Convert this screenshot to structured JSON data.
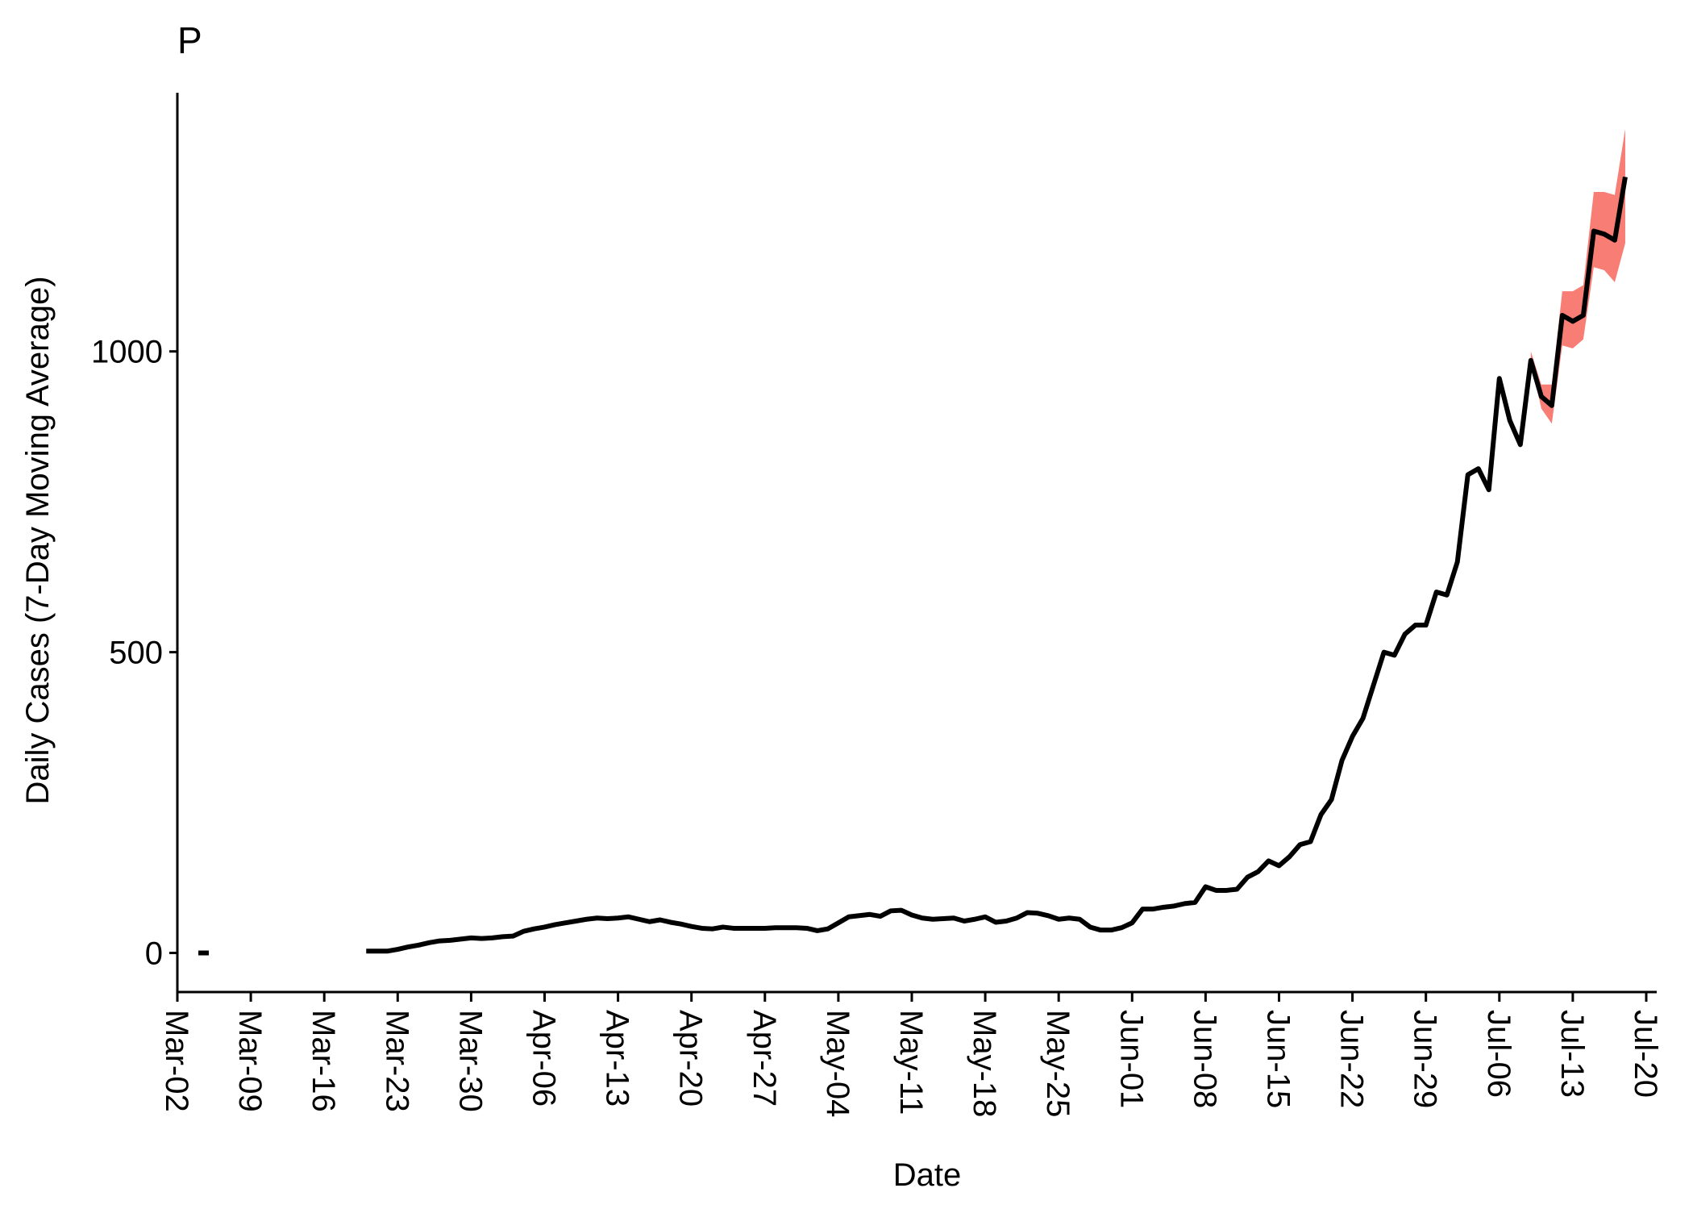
{
  "chart_data": {
    "type": "line",
    "panel_label": "P",
    "title": "",
    "xlabel": "Date",
    "ylabel": "Daily Cases (7-Day Moving Average)",
    "x_start": "Mar-02",
    "x_end": "Jul-21",
    "xlim": [
      "Mar-02",
      "Jul-21"
    ],
    "ylim": [
      -65,
      1430
    ],
    "x_ticks": [
      "Mar-02",
      "Mar-09",
      "Mar-16",
      "Mar-23",
      "Mar-30",
      "Apr-06",
      "Apr-13",
      "Apr-20",
      "Apr-27",
      "May-04",
      "May-11",
      "May-18",
      "May-25",
      "Jun-01",
      "Jun-08",
      "Jun-15",
      "Jun-22",
      "Jun-29",
      "Jul-06",
      "Jul-13",
      "Jul-20"
    ],
    "y_ticks": [
      0,
      500,
      1000
    ],
    "y_tick_labels": [
      "0",
      "500",
      "1000"
    ],
    "grid": false,
    "legend": "none",
    "colors": {
      "line": "#000000",
      "band": "#f8766d",
      "axis": "#000000"
    },
    "series": [
      {
        "points": [
          {
            "x": "Mar-04",
            "y": 0
          },
          {
            "x": "Mar-05",
            "y": 0
          },
          {
            "x": null,
            "y": null
          },
          {
            "x": "Mar-20",
            "y": 3
          },
          {
            "x": "Mar-21",
            "y": 3
          },
          {
            "x": "Mar-22",
            "y": 3
          },
          {
            "x": "Mar-23",
            "y": 6
          },
          {
            "x": "Mar-24",
            "y": 10
          },
          {
            "x": "Mar-25",
            "y": 13
          },
          {
            "x": "Mar-26",
            "y": 17
          },
          {
            "x": "Mar-27",
            "y": 20
          },
          {
            "x": "Mar-28",
            "y": 21
          },
          {
            "x": "Mar-29",
            "y": 23
          },
          {
            "x": "Mar-30",
            "y": 25
          },
          {
            "x": "Mar-31",
            "y": 24
          },
          {
            "x": "Apr-01",
            "y": 25
          },
          {
            "x": "Apr-02",
            "y": 27
          },
          {
            "x": "Apr-03",
            "y": 28
          },
          {
            "x": "Apr-04",
            "y": 36
          },
          {
            "x": "Apr-05",
            "y": 40
          },
          {
            "x": "Apr-06",
            "y": 43
          },
          {
            "x": "Apr-07",
            "y": 47
          },
          {
            "x": "Apr-08",
            "y": 50
          },
          {
            "x": "Apr-09",
            "y": 53
          },
          {
            "x": "Apr-10",
            "y": 56
          },
          {
            "x": "Apr-11",
            "y": 58
          },
          {
            "x": "Apr-12",
            "y": 57
          },
          {
            "x": "Apr-13",
            "y": 58
          },
          {
            "x": "Apr-14",
            "y": 60
          },
          {
            "x": "Apr-15",
            "y": 56
          },
          {
            "x": "Apr-16",
            "y": 52
          },
          {
            "x": "Apr-17",
            "y": 55
          },
          {
            "x": "Apr-18",
            "y": 51
          },
          {
            "x": "Apr-19",
            "y": 48
          },
          {
            "x": "Apr-20",
            "y": 44
          },
          {
            "x": "Apr-21",
            "y": 41
          },
          {
            "x": "Apr-22",
            "y": 40
          },
          {
            "x": "Apr-23",
            "y": 43
          },
          {
            "x": "Apr-24",
            "y": 41
          },
          {
            "x": "Apr-25",
            "y": 41
          },
          {
            "x": "Apr-26",
            "y": 41
          },
          {
            "x": "Apr-27",
            "y": 41
          },
          {
            "x": "Apr-28",
            "y": 42
          },
          {
            "x": "Apr-29",
            "y": 42
          },
          {
            "x": "Apr-30",
            "y": 42
          },
          {
            "x": "May-01",
            "y": 41
          },
          {
            "x": "May-02",
            "y": 37
          },
          {
            "x": "May-03",
            "y": 40
          },
          {
            "x": "May-04",
            "y": 50
          },
          {
            "x": "May-05",
            "y": 60
          },
          {
            "x": "May-06",
            "y": 62
          },
          {
            "x": "May-07",
            "y": 64
          },
          {
            "x": "May-08",
            "y": 61
          },
          {
            "x": "May-09",
            "y": 70
          },
          {
            "x": "May-10",
            "y": 71
          },
          {
            "x": "May-11",
            "y": 63
          },
          {
            "x": "May-12",
            "y": 58
          },
          {
            "x": "May-13",
            "y": 56
          },
          {
            "x": "May-14",
            "y": 57
          },
          {
            "x": "May-15",
            "y": 58
          },
          {
            "x": "May-16",
            "y": 53
          },
          {
            "x": "May-17",
            "y": 56
          },
          {
            "x": "May-18",
            "y": 60
          },
          {
            "x": "May-19",
            "y": 51
          },
          {
            "x": "May-20",
            "y": 53
          },
          {
            "x": "May-21",
            "y": 58
          },
          {
            "x": "May-22",
            "y": 67
          },
          {
            "x": "May-23",
            "y": 66
          },
          {
            "x": "May-24",
            "y": 62
          },
          {
            "x": "May-25",
            "y": 56
          },
          {
            "x": "May-26",
            "y": 58
          },
          {
            "x": "May-27",
            "y": 56
          },
          {
            "x": "May-28",
            "y": 43
          },
          {
            "x": "May-29",
            "y": 38
          },
          {
            "x": "May-30",
            "y": 38
          },
          {
            "x": "May-31",
            "y": 42
          },
          {
            "x": "Jun-01",
            "y": 50
          },
          {
            "x": "Jun-02",
            "y": 73
          },
          {
            "x": "Jun-03",
            "y": 73
          },
          {
            "x": "Jun-04",
            "y": 76
          },
          {
            "x": "Jun-05",
            "y": 78
          },
          {
            "x": "Jun-06",
            "y": 82
          },
          {
            "x": "Jun-07",
            "y": 84
          },
          {
            "x": "Jun-08",
            "y": 110
          },
          {
            "x": "Jun-09",
            "y": 104
          },
          {
            "x": "Jun-10",
            "y": 104
          },
          {
            "x": "Jun-11",
            "y": 106
          },
          {
            "x": "Jun-12",
            "y": 126
          },
          {
            "x": "Jun-13",
            "y": 135
          },
          {
            "x": "Jun-14",
            "y": 153
          },
          {
            "x": "Jun-15",
            "y": 145
          },
          {
            "x": "Jun-16",
            "y": 160
          },
          {
            "x": "Jun-17",
            "y": 180
          },
          {
            "x": "Jun-18",
            "y": 185
          },
          {
            "x": "Jun-19",
            "y": 230
          },
          {
            "x": "Jun-20",
            "y": 255
          },
          {
            "x": "Jun-21",
            "y": 320
          },
          {
            "x": "Jun-22",
            "y": 360
          },
          {
            "x": "Jun-23",
            "y": 390
          },
          {
            "x": "Jun-24",
            "y": 445
          },
          {
            "x": "Jun-25",
            "y": 500
          },
          {
            "x": "Jun-26",
            "y": 495
          },
          {
            "x": "Jun-27",
            "y": 530
          },
          {
            "x": "Jun-28",
            "y": 545
          },
          {
            "x": "Jun-29",
            "y": 545
          },
          {
            "x": "Jun-30",
            "y": 600
          },
          {
            "x": "Jul-01",
            "y": 595
          },
          {
            "x": "Jul-02",
            "y": 650
          },
          {
            "x": "Jul-03",
            "y": 795
          },
          {
            "x": "Jul-04",
            "y": 805
          },
          {
            "x": "Jul-05",
            "y": 770
          },
          {
            "x": "Jul-06",
            "y": 955
          },
          {
            "x": "Jul-07",
            "y": 885
          },
          {
            "x": "Jul-08",
            "y": 845
          },
          {
            "x": "Jul-09",
            "y": 985
          },
          {
            "x": "Jul-10",
            "y": 925
          },
          {
            "x": "Jul-11",
            "y": 910
          },
          {
            "x": "Jul-12",
            "y": 1060
          },
          {
            "x": "Jul-13",
            "y": 1050
          },
          {
            "x": "Jul-14",
            "y": 1060
          },
          {
            "x": "Jul-15",
            "y": 1200
          },
          {
            "x": "Jul-16",
            "y": 1195
          },
          {
            "x": "Jul-17",
            "y": 1185
          },
          {
            "x": "Jul-18",
            "y": 1290
          }
        ]
      }
    ],
    "band": [
      {
        "x": "Jul-09",
        "lower": 985,
        "upper": 1000
      },
      {
        "x": "Jul-10",
        "lower": 905,
        "upper": 945
      },
      {
        "x": "Jul-11",
        "lower": 880,
        "upper": 945
      },
      {
        "x": "Jul-12",
        "lower": 1010,
        "upper": 1100
      },
      {
        "x": "Jul-13",
        "lower": 1005,
        "upper": 1100
      },
      {
        "x": "Jul-14",
        "lower": 1020,
        "upper": 1110
      },
      {
        "x": "Jul-15",
        "lower": 1140,
        "upper": 1265
      },
      {
        "x": "Jul-16",
        "lower": 1135,
        "upper": 1265
      },
      {
        "x": "Jul-17",
        "lower": 1115,
        "upper": 1260
      },
      {
        "x": "Jul-18",
        "lower": 1180,
        "upper": 1370
      }
    ]
  }
}
